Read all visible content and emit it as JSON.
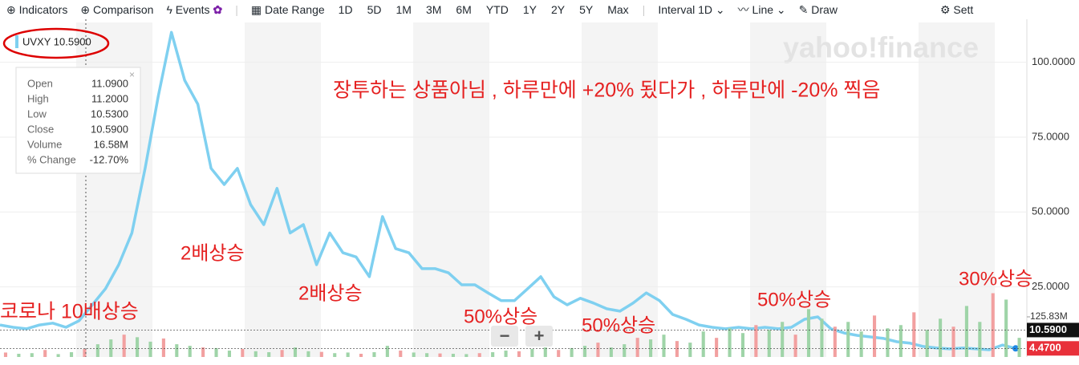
{
  "toolbar": {
    "indicators": "Indicators",
    "comparison": "Comparison",
    "events": "Events",
    "date_range": "Date Range",
    "ranges": [
      "1D",
      "5D",
      "1M",
      "3M",
      "6M",
      "YTD",
      "1Y",
      "2Y",
      "5Y",
      "Max"
    ],
    "interval": "Interval",
    "interval_value": "1D",
    "chart_type": "Line",
    "draw": "Draw",
    "settings": "Sett"
  },
  "chart_data": {
    "type": "line",
    "ticker_label": "UVXY 10.5900",
    "watermark": "yahoo!finance",
    "tooltip": [
      [
        "Open",
        "11.0900"
      ],
      [
        "High",
        "11.2000"
      ],
      [
        "Low",
        "10.5300"
      ],
      [
        "Close",
        "10.5900"
      ],
      [
        "Volume",
        "16.58M"
      ],
      [
        "% Change",
        "-12.70%"
      ]
    ],
    "annotations": [
      "장투하는 상품아님 , 하루만에 +20% 됬다가 , 하루만에 -20% 찍음",
      "2배상승",
      "코로나 10배상승",
      "2배상승",
      "50%상승",
      "50%상승",
      "50%상승",
      "30%상승"
    ],
    "ylim": [
      1.6,
      113.3
    ],
    "yticks": [
      {
        "value": 25,
        "label": "25.0000"
      },
      {
        "value": 50,
        "label": "50.0000"
      },
      {
        "value": 75,
        "label": "75.0000"
      },
      {
        "value": 100,
        "label": "100.0000"
      }
    ],
    "y2lim": [
      0,
      1049
    ],
    "y2ticks": [
      {
        "value": 125.83,
        "label": "125.83M"
      }
    ],
    "price_labels": [
      {
        "value": 10.59,
        "label": "10.5900",
        "color": "#111111"
      },
      {
        "value": 4.47,
        "label": "4.4700",
        "color": "#e8303a"
      }
    ],
    "series": [
      {
        "name": "UVXY",
        "color": "#7fd0f0",
        "values": [
          12.3,
          11.5,
          11,
          12.3,
          12.9,
          11.5,
          13.7,
          19,
          24.4,
          32.4,
          43,
          64.6,
          88.7,
          110,
          94,
          86,
          64.6,
          59.2,
          64.6,
          52.5,
          45.8,
          57.9,
          43,
          45.8,
          32.4,
          43,
          36.4,
          35,
          28.4,
          48.5,
          37.8,
          36.4,
          31.1,
          31.1,
          29.7,
          25.7,
          25.7,
          23,
          20.4,
          20.4,
          24.4,
          28.4,
          21.7,
          19,
          21.2,
          19.6,
          17.7,
          16.9,
          19.6,
          23,
          20.4,
          15.8,
          14.2,
          12.3,
          11.5,
          11,
          11.5,
          11,
          11.5,
          11,
          11.5,
          14.2,
          15,
          11,
          9.6,
          8.8,
          8.3,
          7.8,
          6.7,
          6.2,
          5.1,
          4.6,
          4.3,
          4.6,
          4.3,
          4,
          5.6,
          4.47
        ]
      },
      {
        "name": "Volume",
        "axis": "y2",
        "color": "#9fd4a8",
        "values": [
          14,
          10,
          12,
          22,
          9,
          15,
          25,
          40,
          55,
          70,
          62,
          48,
          58,
          40,
          35,
          30,
          28,
          20,
          25,
          18,
          15,
          22,
          30,
          18,
          16,
          12,
          14,
          10,
          15,
          35,
          20,
          14,
          12,
          11,
          10,
          9,
          12,
          15,
          20,
          18,
          25,
          30,
          22,
          28,
          35,
          45,
          30,
          40,
          60,
          55,
          70,
          50,
          45,
          80,
          60,
          90,
          75,
          100,
          85,
          110,
          70,
          150,
          120,
          95,
          110,
          80,
          130,
          90,
          100,
          140,
          85,
          120,
          95,
          160,
          110,
          200,
          180,
          60
        ]
      }
    ]
  }
}
